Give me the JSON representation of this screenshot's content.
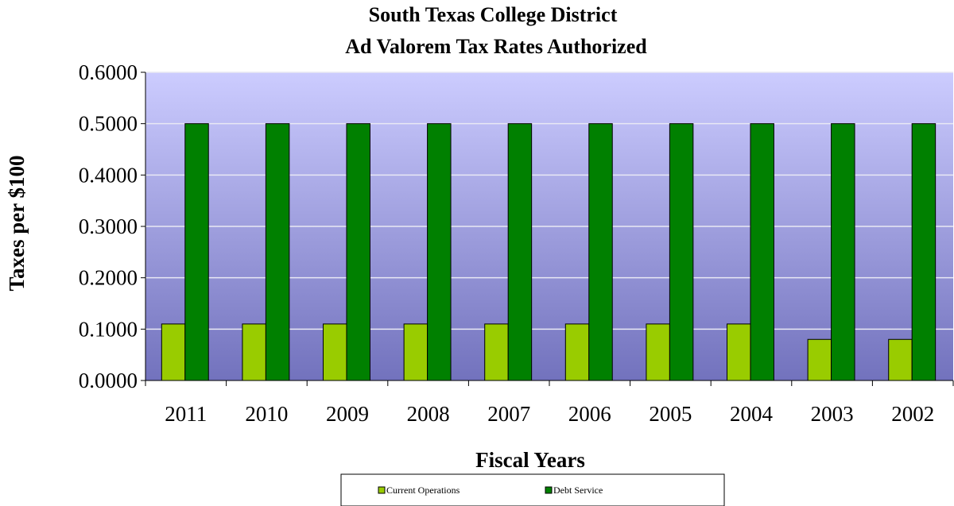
{
  "chart_data": {
    "type": "bar",
    "title": [
      "South Texas College District",
      "Ad Valorem Tax Rates Authorized"
    ],
    "xlabel": "Fiscal Years",
    "ylabel": "Taxes per  $100",
    "categories": [
      "2011",
      "2010",
      "2009",
      "2008",
      "2007",
      "2006",
      "2005",
      "2004",
      "2003",
      "2002"
    ],
    "ylim": [
      0,
      0.6
    ],
    "yticks": [
      "0.0000",
      "0.1000",
      "0.2000",
      "0.3000",
      "0.4000",
      "0.5000",
      "0.6000"
    ],
    "grid": true,
    "legend_position": "bottom",
    "series": [
      {
        "name": "Current Operations",
        "color": "#99cc00",
        "values": [
          0.11,
          0.11,
          0.11,
          0.11,
          0.11,
          0.11,
          0.11,
          0.11,
          0.08,
          0.08
        ]
      },
      {
        "name": "Debt Service",
        "color": "#008000",
        "values": [
          0.5,
          0.5,
          0.5,
          0.5,
          0.5,
          0.5,
          0.5,
          0.5,
          0.5,
          0.5
        ]
      }
    ],
    "plot_background": {
      "top_color": "#ccccff",
      "bottom_color": "#7272bd"
    }
  }
}
